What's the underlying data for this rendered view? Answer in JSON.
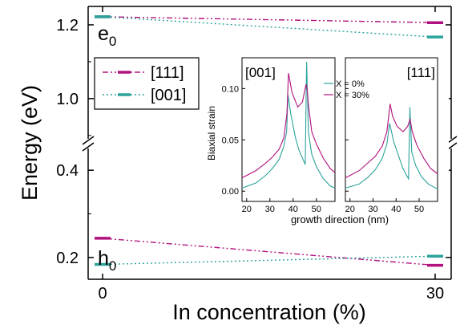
{
  "chart_data": [
    {
      "type": "line",
      "xlabel": "In concentration (%)",
      "ylabel": "Energy (eV)",
      "xlim": [
        0,
        30
      ],
      "ylim_upper": [
        0.88,
        1.25
      ],
      "ylim_lower": [
        0.15,
        0.45
      ],
      "y_axis_break": true,
      "x_ticks": [
        "0",
        "30"
      ],
      "y_ticks_upper": [
        "1.2",
        "1.0"
      ],
      "y_ticks_lower": [
        "0.4",
        "0.2"
      ],
      "annotations": [
        {
          "base": "e",
          "sub": "0"
        },
        {
          "base": "h",
          "sub": "0"
        }
      ],
      "legend_position": "upper-left",
      "colors": {
        "series_111": "#b0127e",
        "series_001": "#2ba39a"
      },
      "series": [
        {
          "name": "[111]",
          "style": "dash-dot-dot",
          "color": "#b0127e",
          "e0": [
            {
              "x": 0,
              "y": 1.222
            },
            {
              "x": 30,
              "y": 1.206
            }
          ],
          "h0": [
            {
              "x": 0,
              "y": 0.244
            },
            {
              "x": 30,
              "y": 0.182
            }
          ]
        },
        {
          "name": "[001]",
          "style": "dotted",
          "color": "#2ba39a",
          "e0": [
            {
              "x": 0,
              "y": 1.222
            },
            {
              "x": 30,
              "y": 1.167
            }
          ],
          "h0": [
            {
              "x": 0,
              "y": 0.184
            },
            {
              "x": 30,
              "y": 0.203
            }
          ]
        }
      ]
    },
    {
      "type": "line",
      "panels": [
        "[001]",
        "[111]"
      ],
      "xlabel": "growth direction (nm)",
      "ylabel": "Biaxial strain",
      "xlim": [
        18,
        58
      ],
      "ylim": [
        -0.01,
        0.13
      ],
      "x_ticks": [
        "20",
        "30",
        "40",
        "50"
      ],
      "y_ticks": [
        "0.00",
        "0.05",
        "0.10"
      ],
      "legend_position": "top",
      "series": [
        {
          "name": "X = 0%",
          "color": "#2ba39a",
          "panel_001": [
            [
              18,
              0.003
            ],
            [
              24,
              0.008
            ],
            [
              28,
              0.015
            ],
            [
              31,
              0.022
            ],
            [
              34,
              0.031
            ],
            [
              36,
              0.044
            ],
            [
              37.2,
              0.058
            ],
            [
              37.8,
              0.094
            ],
            [
              39,
              0.075
            ],
            [
              41,
              0.052
            ],
            [
              42.5,
              0.04
            ],
            [
              45.2,
              0.026
            ],
            [
              45.8,
              0.126
            ],
            [
              46.6,
              0.057
            ],
            [
              48,
              0.036
            ],
            [
              50,
              0.024
            ],
            [
              53,
              0.012
            ],
            [
              56,
              0.005
            ],
            [
              58,
              0.003
            ]
          ],
          "panel_111": [
            [
              18,
              0.003
            ],
            [
              24,
              0.007
            ],
            [
              28,
              0.014
            ],
            [
              31,
              0.021
            ],
            [
              34,
              0.032
            ],
            [
              36,
              0.046
            ],
            [
              37.2,
              0.066
            ],
            [
              39,
              0.048
            ],
            [
              41,
              0.035
            ],
            [
              43,
              0.022
            ],
            [
              45.4,
              0.012
            ],
            [
              46,
              0.082
            ],
            [
              46.8,
              0.038
            ],
            [
              48.5,
              0.025
            ],
            [
              51,
              0.014
            ],
            [
              54,
              0.007
            ],
            [
              58,
              0.002
            ]
          ]
        },
        {
          "name": "X = 30%",
          "color": "#b0127e",
          "panel_001": [
            [
              18,
              0.013
            ],
            [
              24,
              0.02
            ],
            [
              28,
              0.027
            ],
            [
              31,
              0.033
            ],
            [
              34,
              0.041
            ],
            [
              36,
              0.052
            ],
            [
              37.3,
              0.075
            ],
            [
              38,
              0.115
            ],
            [
              39.5,
              0.096
            ],
            [
              42,
              0.082
            ],
            [
              44,
              0.087
            ],
            [
              45.5,
              0.104
            ],
            [
              46,
              0.1
            ],
            [
              46.6,
              0.084
            ],
            [
              48,
              0.058
            ],
            [
              50,
              0.046
            ],
            [
              53,
              0.032
            ],
            [
              56,
              0.022
            ],
            [
              58,
              0.018
            ]
          ],
          "panel_111": [
            [
              18,
              0.013
            ],
            [
              24,
              0.02
            ],
            [
              28,
              0.028
            ],
            [
              31,
              0.034
            ],
            [
              34,
              0.044
            ],
            [
              36,
              0.058
            ],
            [
              37.4,
              0.085
            ],
            [
              38.5,
              0.073
            ],
            [
              40.5,
              0.063
            ],
            [
              43,
              0.058
            ],
            [
              45,
              0.063
            ],
            [
              46.1,
              0.07
            ],
            [
              47,
              0.058
            ],
            [
              49,
              0.045
            ],
            [
              52,
              0.032
            ],
            [
              55,
              0.022
            ],
            [
              58,
              0.017
            ]
          ]
        }
      ]
    }
  ]
}
